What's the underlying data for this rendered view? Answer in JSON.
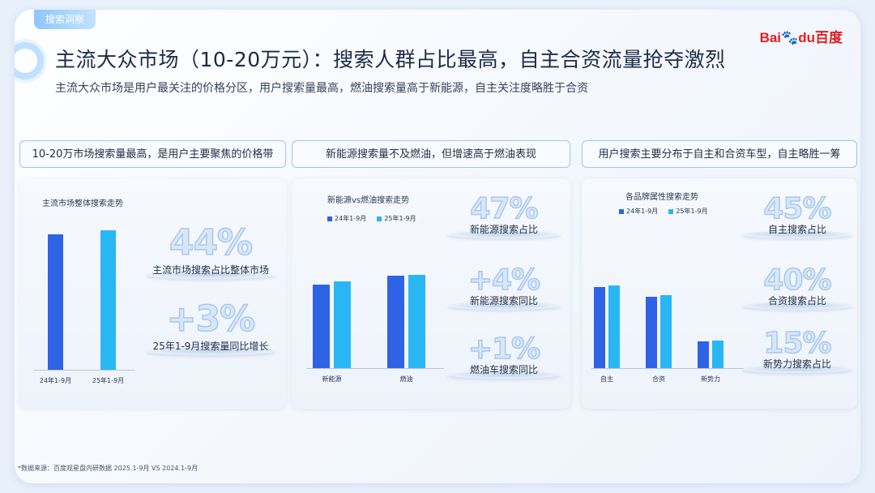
{
  "header": {
    "tag": "搜索洞察",
    "title": "主流大众市场（10-20万元）：搜索人群占比最高，自主合资流量抢夺激烈",
    "subtitle": "主流大众市场是用户最关注的价格分区，用户搜索量最高，燃油搜索量高于新能源，自主关注度略胜于合资",
    "logo_text": "Bai",
    "logo_paw": "du",
    "logo_cn": "百度"
  },
  "panels": [
    {
      "heading": "10-20万市场搜索量最高，是用户主要聚焦的价格带",
      "chart_title": "主流市场整体搜索走势",
      "stats": [
        {
          "value": "44%",
          "label": "主流市场搜索占比整体市场"
        },
        {
          "value": "+3%",
          "label": "25年1-9月搜索量同比增长"
        }
      ]
    },
    {
      "heading": "新能源搜索量不及燃油，但增速高于燃油表现",
      "chart_title": "新能源vs燃油搜索走势",
      "stats": [
        {
          "value": "47%",
          "label": "新能源搜索占比"
        },
        {
          "value": "+4%",
          "label": "新能源搜索同比"
        },
        {
          "value": "+1%",
          "label": "燃油车搜索同比"
        }
      ]
    },
    {
      "heading": "用户搜索主要分布于自主和合资车型，自主略胜一筹",
      "chart_title": "各品牌属性搜索走势",
      "stats": [
        {
          "value": "45%",
          "label": "自主搜索占比"
        },
        {
          "value": "40%",
          "label": "合资搜索占比"
        },
        {
          "value": "15%",
          "label": "新势力搜索占比"
        }
      ]
    }
  ],
  "chart_data": [
    {
      "type": "bar",
      "title": "主流市场整体搜索走势",
      "categories": [
        "24年1-9月",
        "25年1-9月"
      ],
      "series": [
        {
          "values": [
            100,
            103
          ]
        }
      ],
      "colors": [
        "#2f63e6",
        "#29b7f4"
      ],
      "ylim": [
        0,
        120
      ],
      "grid": false
    },
    {
      "type": "bar",
      "title": "新能源vs燃油搜索走势",
      "categories": [
        "新能源",
        "燃油"
      ],
      "series": [
        {
          "name": "24年1-9月",
          "values": [
            90,
            100
          ]
        },
        {
          "name": "25年1-9月",
          "values": [
            93.6,
            101
          ]
        }
      ],
      "colors": [
        "#2f63e6",
        "#29b7f4"
      ],
      "ylim": [
        0,
        140
      ],
      "legend": "top-left",
      "grid": false
    },
    {
      "type": "bar",
      "title": "各品牌属性搜索走势",
      "categories": [
        "自主",
        "合资",
        "新势力"
      ],
      "series": [
        {
          "name": "24年1-9月",
          "values": [
            100,
            88,
            33
          ]
        },
        {
          "name": "25年1-9月",
          "values": [
            102,
            90,
            34
          ]
        }
      ],
      "colors": [
        "#2f63e6",
        "#29b7f4"
      ],
      "ylim": [
        0,
        140
      ],
      "legend": "top-left",
      "grid": false
    }
  ],
  "footnote": "*数据来源：百度观星盘内研数据 2025.1-9月 VS 2024.1-9月"
}
